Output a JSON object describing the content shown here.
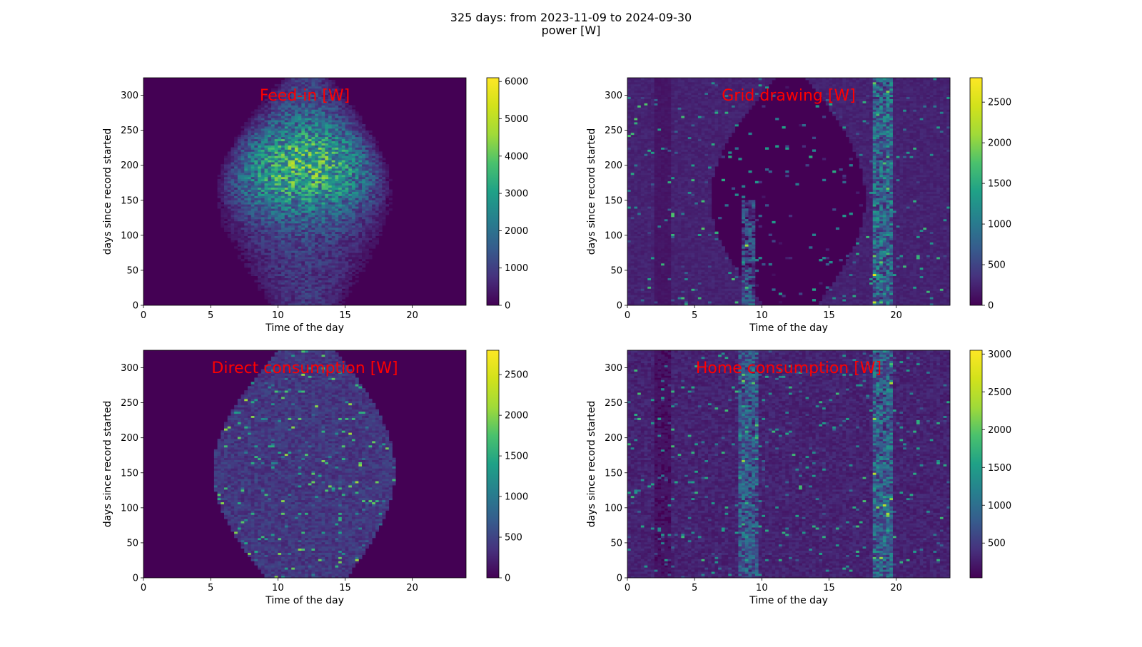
{
  "figure": {
    "title_line1": "325 days: from 2023-11-09 to 2024-09-30",
    "title_line2": "power [W]"
  },
  "chart_data": [
    {
      "type": "heatmap",
      "title": "Feed-in [W]",
      "xlabel": "Time of the day",
      "ylabel": "days since record started",
      "xlim": [
        0,
        24
      ],
      "ylim": [
        0,
        325
      ],
      "xticks": [
        0,
        5,
        10,
        15,
        20
      ],
      "yticks": [
        0,
        50,
        100,
        150,
        200,
        250,
        300
      ],
      "colorbar": {
        "range": [
          0,
          6100
        ],
        "ticks": [
          0,
          1000,
          2000,
          3000,
          4000,
          5000,
          6000
        ],
        "colormap": "viridis"
      }
    },
    {
      "type": "heatmap",
      "title": "Grid drawing [W]",
      "xlabel": "Time of the day",
      "ylabel": "days since record started",
      "xlim": [
        0,
        24
      ],
      "ylim": [
        0,
        325
      ],
      "xticks": [
        0,
        5,
        10,
        15,
        20
      ],
      "yticks": [
        0,
        50,
        100,
        150,
        200,
        250,
        300
      ],
      "colorbar": {
        "range": [
          0,
          2800
        ],
        "ticks": [
          0,
          500,
          1000,
          1500,
          2000,
          2500
        ],
        "colormap": "viridis"
      }
    },
    {
      "type": "heatmap",
      "title": "Direct consumption [W]",
      "xlabel": "Time of the day",
      "ylabel": "days since record started",
      "xlim": [
        0,
        24
      ],
      "ylim": [
        0,
        325
      ],
      "xticks": [
        0,
        5,
        10,
        15,
        20
      ],
      "yticks": [
        0,
        50,
        100,
        150,
        200,
        250,
        300
      ],
      "colorbar": {
        "range": [
          0,
          2800
        ],
        "ticks": [
          0,
          500,
          1000,
          1500,
          2000,
          2500
        ],
        "colormap": "viridis"
      }
    },
    {
      "type": "heatmap",
      "title": "Home consumption [W]",
      "xlabel": "Time of the day",
      "ylabel": "days since record started",
      "xlim": [
        0,
        24
      ],
      "ylim": [
        0,
        325
      ],
      "xticks": [
        0,
        5,
        10,
        15,
        20
      ],
      "yticks": [
        0,
        50,
        100,
        150,
        200,
        250,
        300
      ],
      "colorbar": {
        "range": [
          40,
          3050
        ],
        "ticks": [
          500,
          1000,
          1500,
          2000,
          2500,
          3000
        ],
        "colormap": "viridis"
      }
    }
  ]
}
